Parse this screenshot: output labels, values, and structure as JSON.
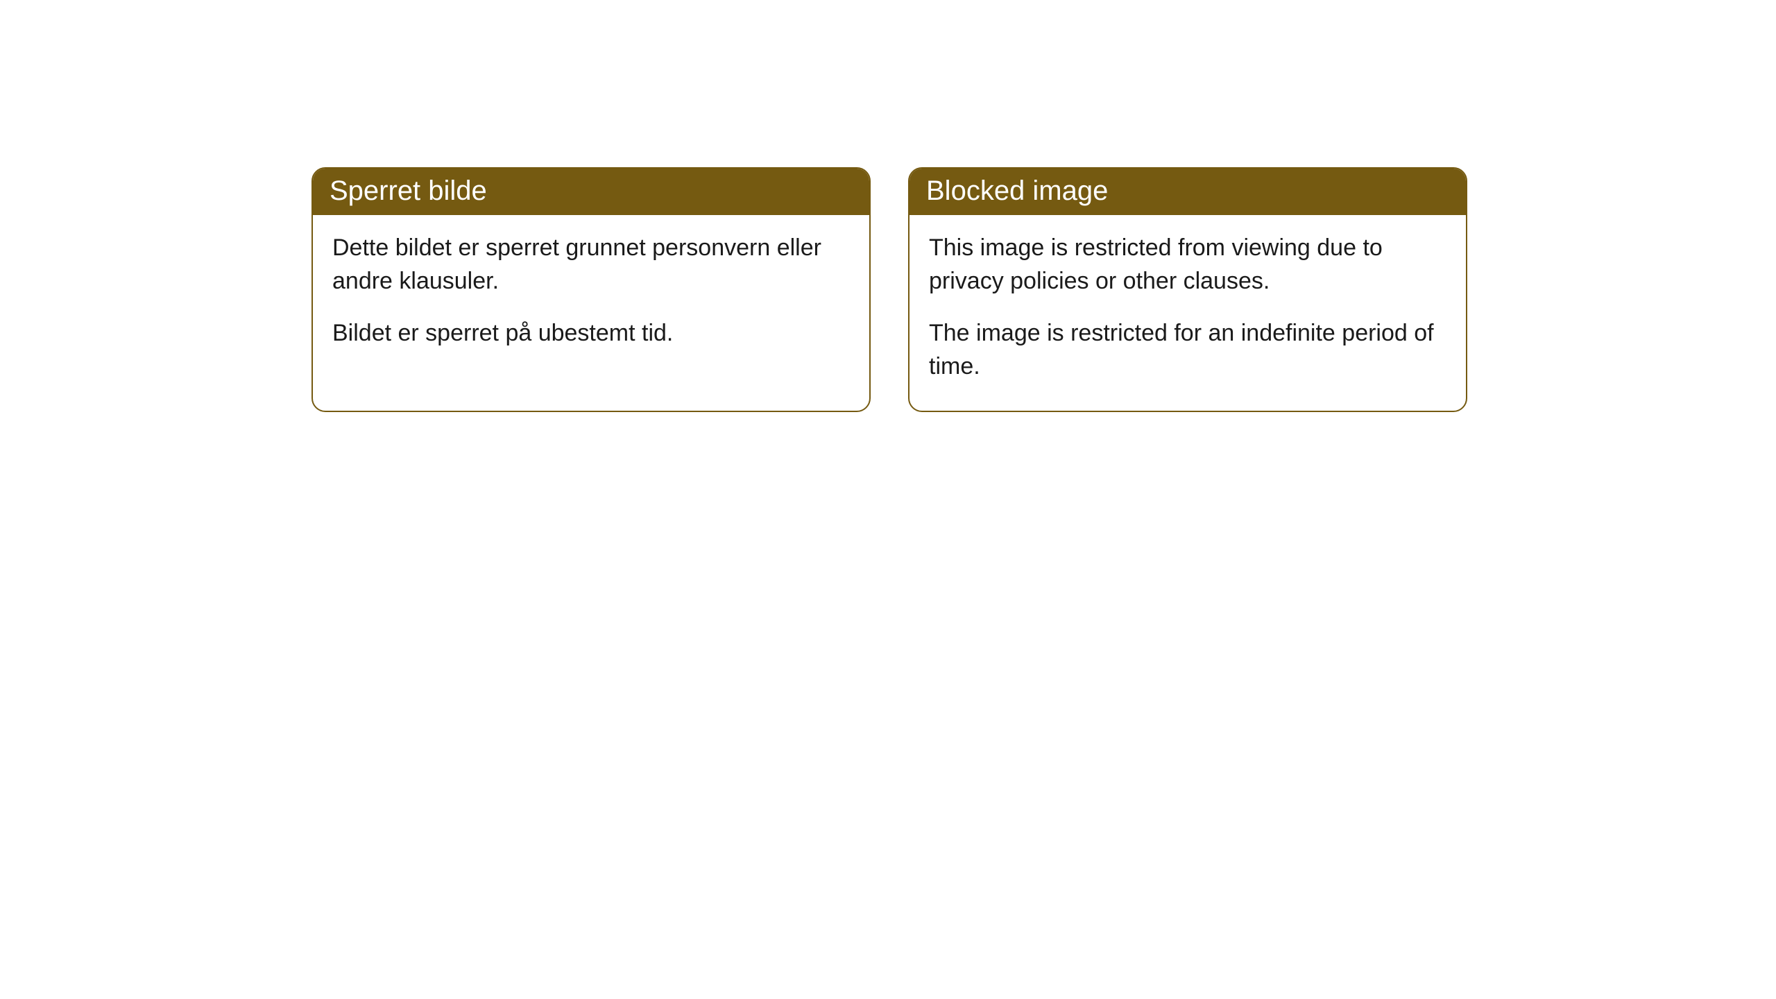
{
  "cards": [
    {
      "title": "Sperret bilde",
      "paragraph1": "Dette bildet er sperret grunnet personvern eller andre klausuler.",
      "paragraph2": "Bildet er sperret på ubestemt tid."
    },
    {
      "title": "Blocked image",
      "paragraph1": "This image is restricted from viewing due to privacy policies or other clauses.",
      "paragraph2": "The image is restricted for an indefinite period of time."
    }
  ],
  "style": {
    "header_bg_color": "#755a11",
    "header_text_color": "#ffffff",
    "border_color": "#755a11",
    "body_text_color": "#1a1a1a",
    "card_bg_color": "#ffffff",
    "border_radius": 20,
    "header_fontsize": 40,
    "body_fontsize": 34
  }
}
